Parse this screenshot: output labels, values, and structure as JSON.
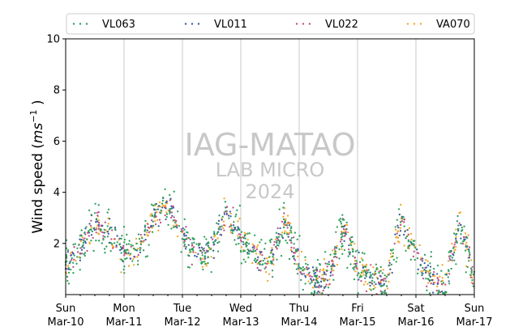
{
  "chart_data": {
    "type": "scatter",
    "title": "",
    "xlabel": "",
    "ylabel_prefix": "Wind speed (",
    "ylabel_unit_base": "ms",
    "ylabel_unit_exp": "−1",
    "ylabel_suffix": " )",
    "ylim": [
      0,
      10
    ],
    "yticks": [
      "2",
      "4",
      "6",
      "8",
      "10"
    ],
    "xlim": [
      "2024-03-10 00:00",
      "2024-03-17 00:00"
    ],
    "xticks": [
      {
        "day": "Sun",
        "date": "Mar-10"
      },
      {
        "day": "Mon",
        "date": "Mar-11"
      },
      {
        "day": "Tue",
        "date": "Mar-12"
      },
      {
        "day": "Wed",
        "date": "Mar-13"
      },
      {
        "day": "Thu",
        "date": "Mar-14"
      },
      {
        "day": "Fri",
        "date": "Mar-15"
      },
      {
        "day": "Sat",
        "date": "Mar-16"
      },
      {
        "day": "Sun",
        "date": "Mar-17"
      }
    ],
    "grid": "vertical-major",
    "legend_position": "top",
    "watermark": [
      "IAG-MATAO",
      "LAB MICRO",
      "2024"
    ],
    "series": [
      {
        "name": "VL063",
        "color": "#2ca05a",
        "marker": "dot"
      },
      {
        "name": "VL011",
        "color": "#3a5f9e",
        "marker": "dot"
      },
      {
        "name": "VL022",
        "color": "#c0508a",
        "marker": "dot"
      },
      {
        "name": "VA070",
        "color": "#f5a623",
        "marker": "dot"
      }
    ],
    "daily_profile_hourly_mean": {
      "hours": [
        "2024-03-10 00:00",
        "2024-03-10 06:00",
        "2024-03-10 12:00",
        "2024-03-10 18:00",
        "2024-03-11 00:00",
        "2024-03-11 06:00",
        "2024-03-11 12:00",
        "2024-03-11 18:00",
        "2024-03-12 00:00",
        "2024-03-12 06:00",
        "2024-03-12 12:00",
        "2024-03-12 18:00",
        "2024-03-13 00:00",
        "2024-03-13 06:00",
        "2024-03-13 12:00",
        "2024-03-13 18:00",
        "2024-03-14 00:00",
        "2024-03-14 06:00",
        "2024-03-14 12:00",
        "2024-03-14 18:00",
        "2024-03-15 00:00",
        "2024-03-15 06:00",
        "2024-03-15 12:00",
        "2024-03-15 18:00",
        "2024-03-16 00:00",
        "2024-03-16 06:00",
        "2024-03-16 12:00",
        "2024-03-16 18:00",
        "2024-03-17 00:00"
      ],
      "values": [
        1.2,
        1.8,
        2.8,
        2.4,
        1.6,
        1.7,
        2.9,
        3.5,
        2.4,
        1.5,
        1.7,
        3.3,
        2.2,
        1.5,
        1.2,
        3.0,
        1.2,
        0.5,
        0.7,
        2.6,
        1.1,
        0.6,
        0.4,
        3.0,
        1.5,
        0.6,
        0.3,
        2.9,
        0.7
      ]
    }
  }
}
